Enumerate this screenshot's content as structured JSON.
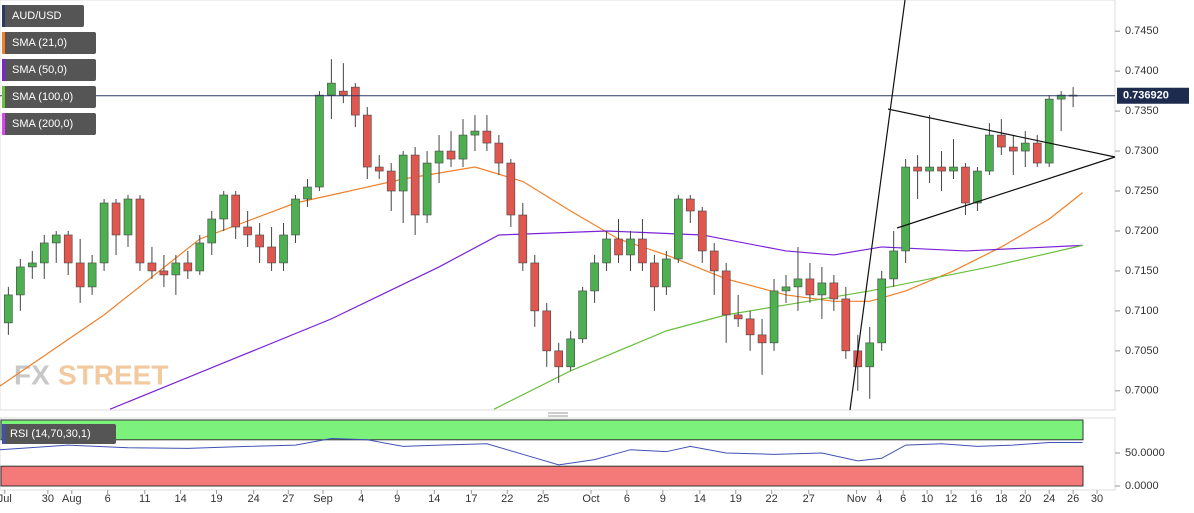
{
  "chart_data": {
    "type": "candlestick",
    "title": "AUD/USD",
    "ylim": [
      0.6976,
      0.7489
    ],
    "yticks": [
      {
        "value": 0.745,
        "label": "0.7450"
      },
      {
        "value": 0.74,
        "label": "0.7400"
      },
      {
        "value": 0.735,
        "label": "0.7350"
      },
      {
        "value": 0.73,
        "label": "0.7300"
      },
      {
        "value": 0.725,
        "label": "0.7250"
      },
      {
        "value": 0.72,
        "label": "0.7200"
      },
      {
        "value": 0.715,
        "label": "0.7150"
      },
      {
        "value": 0.71,
        "label": "0.7100"
      },
      {
        "value": 0.705,
        "label": "0.7050"
      },
      {
        "value": 0.7,
        "label": "0.7000"
      }
    ],
    "xlim": [
      -0.7,
      92.5
    ],
    "xticks": [
      {
        "value": -0.3,
        "label": "Jul"
      },
      {
        "value": 3.3,
        "label": "30"
      },
      {
        "value": 5.3,
        "label": "Aug"
      },
      {
        "value": 8.3,
        "label": "6"
      },
      {
        "value": 11.4,
        "label": "11"
      },
      {
        "value": 14.4,
        "label": "14"
      },
      {
        "value": 17.4,
        "label": "19"
      },
      {
        "value": 20.5,
        "label": "24"
      },
      {
        "value": 23.4,
        "label": "27"
      },
      {
        "value": 26.3,
        "label": "Sep"
      },
      {
        "value": 29.5,
        "label": "4"
      },
      {
        "value": 32.5,
        "label": "9"
      },
      {
        "value": 35.6,
        "label": "14"
      },
      {
        "value": 38.7,
        "label": "17"
      },
      {
        "value": 41.7,
        "label": "22"
      },
      {
        "value": 44.7,
        "label": "25"
      },
      {
        "value": 48.7,
        "label": "Oct"
      },
      {
        "value": 51.7,
        "label": "6"
      },
      {
        "value": 54.7,
        "label": "9"
      },
      {
        "value": 57.8,
        "label": "14"
      },
      {
        "value": 60.8,
        "label": "19"
      },
      {
        "value": 63.8,
        "label": "22"
      },
      {
        "value": 66.9,
        "label": "27"
      },
      {
        "value": 70.9,
        "label": "Nov"
      },
      {
        "value": 72.8,
        "label": "4"
      },
      {
        "value": 74.8,
        "label": "6"
      },
      {
        "value": 76.8,
        "label": "10"
      },
      {
        "value": 78.8,
        "label": "12"
      },
      {
        "value": 80.9,
        "label": "16"
      },
      {
        "value": 83,
        "label": "18"
      },
      {
        "value": 85,
        "label": "20"
      },
      {
        "value": 87,
        "label": "24"
      },
      {
        "value": 89,
        "label": "26"
      },
      {
        "value": 91,
        "label": "30"
      }
    ],
    "up_color": "#4caf50",
    "down_color": "#e0574f",
    "candles": [
      [
        0.7085,
        0.713,
        0.707,
        0.712
      ],
      [
        0.712,
        0.7165,
        0.71,
        0.7155
      ],
      [
        0.7155,
        0.7175,
        0.714,
        0.716
      ],
      [
        0.716,
        0.7195,
        0.714,
        0.7185
      ],
      [
        0.7185,
        0.72,
        0.716,
        0.7195
      ],
      [
        0.7195,
        0.72,
        0.7145,
        0.716
      ],
      [
        0.716,
        0.719,
        0.711,
        0.713
      ],
      [
        0.713,
        0.717,
        0.712,
        0.716
      ],
      [
        0.716,
        0.724,
        0.715,
        0.7235
      ],
      [
        0.7235,
        0.724,
        0.717,
        0.7195
      ],
      [
        0.7195,
        0.7245,
        0.718,
        0.724
      ],
      [
        0.724,
        0.7245,
        0.715,
        0.716
      ],
      [
        0.716,
        0.718,
        0.714,
        0.715
      ],
      [
        0.715,
        0.717,
        0.713,
        0.7145
      ],
      [
        0.7145,
        0.717,
        0.712,
        0.716
      ],
      [
        0.716,
        0.7175,
        0.714,
        0.715
      ],
      [
        0.715,
        0.7195,
        0.7145,
        0.7185
      ],
      [
        0.7185,
        0.7225,
        0.717,
        0.7215
      ],
      [
        0.7215,
        0.725,
        0.72,
        0.7245
      ],
      [
        0.7245,
        0.725,
        0.719,
        0.7205
      ],
      [
        0.7205,
        0.7225,
        0.718,
        0.7195
      ],
      [
        0.7195,
        0.721,
        0.716,
        0.718
      ],
      [
        0.718,
        0.7205,
        0.715,
        0.716
      ],
      [
        0.716,
        0.721,
        0.715,
        0.7195
      ],
      [
        0.7195,
        0.7245,
        0.7185,
        0.724
      ],
      [
        0.724,
        0.7265,
        0.723,
        0.7255
      ],
      [
        0.7255,
        0.7375,
        0.725,
        0.737
      ],
      [
        0.737,
        0.7415,
        0.734,
        0.7385
      ],
      [
        0.7375,
        0.741,
        0.736,
        0.737
      ],
      [
        0.738,
        0.7385,
        0.733,
        0.7345
      ],
      [
        0.7345,
        0.7355,
        0.7265,
        0.728
      ],
      [
        0.728,
        0.7295,
        0.7265,
        0.7275
      ],
      [
        0.7275,
        0.7285,
        0.7225,
        0.725
      ],
      [
        0.725,
        0.73,
        0.721,
        0.7295
      ],
      [
        0.7295,
        0.7305,
        0.7195,
        0.722
      ],
      [
        0.722,
        0.73,
        0.721,
        0.7285
      ],
      [
        0.7285,
        0.732,
        0.726,
        0.73
      ],
      [
        0.73,
        0.7325,
        0.728,
        0.729
      ],
      [
        0.729,
        0.734,
        0.728,
        0.732
      ],
      [
        0.732,
        0.7345,
        0.73,
        0.7325
      ],
      [
        0.7325,
        0.7345,
        0.73,
        0.731
      ],
      [
        0.731,
        0.732,
        0.727,
        0.7285
      ],
      [
        0.7285,
        0.729,
        0.7205,
        0.722
      ],
      [
        0.722,
        0.7235,
        0.715,
        0.716
      ],
      [
        0.716,
        0.717,
        0.708,
        0.71
      ],
      [
        0.71,
        0.711,
        0.703,
        0.705
      ],
      [
        0.705,
        0.706,
        0.701,
        0.703
      ],
      [
        0.703,
        0.7075,
        0.7025,
        0.7065
      ],
      [
        0.7065,
        0.713,
        0.706,
        0.7125
      ],
      [
        0.7125,
        0.717,
        0.711,
        0.716
      ],
      [
        0.716,
        0.72,
        0.715,
        0.719
      ],
      [
        0.719,
        0.7215,
        0.716,
        0.717
      ],
      [
        0.717,
        0.72,
        0.715,
        0.719
      ],
      [
        0.719,
        0.7215,
        0.715,
        0.716
      ],
      [
        0.716,
        0.717,
        0.71,
        0.713
      ],
      [
        0.713,
        0.7175,
        0.712,
        0.7165
      ],
      [
        0.7165,
        0.7245,
        0.716,
        0.724
      ],
      [
        0.724,
        0.7245,
        0.721,
        0.7225
      ],
      [
        0.7225,
        0.723,
        0.716,
        0.7175
      ],
      [
        0.7175,
        0.7185,
        0.712,
        0.715
      ],
      [
        0.715,
        0.716,
        0.706,
        0.7095
      ],
      [
        0.7095,
        0.712,
        0.708,
        0.709
      ],
      [
        0.709,
        0.71,
        0.705,
        0.707
      ],
      [
        0.707,
        0.709,
        0.702,
        0.706
      ],
      [
        0.706,
        0.714,
        0.705,
        0.7125
      ],
      [
        0.7125,
        0.7145,
        0.711,
        0.713
      ],
      [
        0.713,
        0.718,
        0.71,
        0.714
      ],
      [
        0.714,
        0.716,
        0.711,
        0.712
      ],
      [
        0.712,
        0.7155,
        0.709,
        0.7135
      ],
      [
        0.7135,
        0.7145,
        0.71,
        0.7115
      ],
      [
        0.7115,
        0.713,
        0.704,
        0.705
      ],
      [
        0.705,
        0.707,
        0.7,
        0.703
      ],
      [
        0.703,
        0.708,
        0.699,
        0.706
      ],
      [
        0.706,
        0.715,
        0.705,
        0.714
      ],
      [
        0.714,
        0.72,
        0.713,
        0.7175
      ],
      [
        0.7175,
        0.729,
        0.716,
        0.728
      ],
      [
        0.728,
        0.7295,
        0.724,
        0.7275
      ],
      [
        0.7275,
        0.7345,
        0.726,
        0.728
      ],
      [
        0.728,
        0.73,
        0.725,
        0.7275
      ],
      [
        0.7275,
        0.7315,
        0.7265,
        0.728
      ],
      [
        0.728,
        0.7285,
        0.722,
        0.7235
      ],
      [
        0.7235,
        0.728,
        0.7225,
        0.7275
      ],
      [
        0.7275,
        0.7335,
        0.727,
        0.732
      ],
      [
        0.732,
        0.734,
        0.7295,
        0.7305
      ],
      [
        0.7305,
        0.732,
        0.727,
        0.73
      ],
      [
        0.73,
        0.7325,
        0.728,
        0.731
      ],
      [
        0.731,
        0.732,
        0.728,
        0.7285
      ],
      [
        0.7285,
        0.737,
        0.728,
        0.7365
      ],
      [
        0.7365,
        0.7375,
        0.7325,
        0.737
      ],
      [
        0.737,
        0.738,
        0.7355,
        0.73692
      ]
    ],
    "price_line": {
      "value": 0.73692,
      "label": "0.736920"
    },
    "series": [
      {
        "name": "SMA (21,0)",
        "color": "#f0802a",
        "x": [
          -0.7,
          8,
          16,
          24,
          33,
          39,
          43,
          47,
          51,
          55,
          60,
          65,
          69,
          72,
          75,
          79,
          83,
          87,
          89.8
        ],
        "values": [
          0.7006,
          0.7095,
          0.719,
          0.7235,
          0.7265,
          0.728,
          0.7262,
          0.7225,
          0.719,
          0.717,
          0.714,
          0.712,
          0.7112,
          0.7112,
          0.7125,
          0.715,
          0.718,
          0.7215,
          0.7248
        ]
      },
      {
        "name": "SMA (50,0)",
        "color": "#7b22d8",
        "x": [
          8.5,
          18,
          27,
          36,
          41,
          50,
          58,
          65,
          69,
          73,
          80,
          89.8
        ],
        "values": [
          0.6977,
          0.7035,
          0.709,
          0.7155,
          0.7195,
          0.72,
          0.7195,
          0.7175,
          0.717,
          0.718,
          0.7175,
          0.7182
        ]
      },
      {
        "name": "SMA (100,0)",
        "color": "#6abf3b",
        "x": [
          40.6,
          47,
          55,
          60,
          66,
          72,
          77,
          82,
          89.8
        ],
        "values": [
          0.6977,
          0.7025,
          0.7075,
          0.7095,
          0.711,
          0.7125,
          0.714,
          0.7155,
          0.7182
        ]
      },
      {
        "name": "SMA (200,0)",
        "color": "#e040fb",
        "x": [],
        "values": []
      }
    ],
    "rsi": {
      "name": "RSI (14,70,30,1)",
      "color": "#3f51b5",
      "overbought": 70,
      "oversold": 30,
      "ylim": [
        0,
        100
      ],
      "yticks": [
        {
          "value": 50,
          "label": "50.0000"
        },
        {
          "value": 0,
          "label": "0.0000"
        }
      ],
      "x": [
        -0.7,
        5,
        10,
        15,
        20,
        24,
        27,
        30,
        33,
        36,
        40,
        43,
        46,
        49,
        52,
        55,
        57,
        60,
        64,
        68,
        71,
        73,
        75,
        78,
        81,
        84,
        87,
        89.8
      ],
      "values": [
        55,
        62,
        58,
        57,
        60,
        62,
        72,
        70,
        60,
        62,
        64,
        48,
        32,
        40,
        55,
        52,
        60,
        50,
        48,
        50,
        38,
        42,
        62,
        64,
        60,
        62,
        66,
        66
      ]
    },
    "watermark": [
      "FX",
      "STREET"
    ]
  }
}
